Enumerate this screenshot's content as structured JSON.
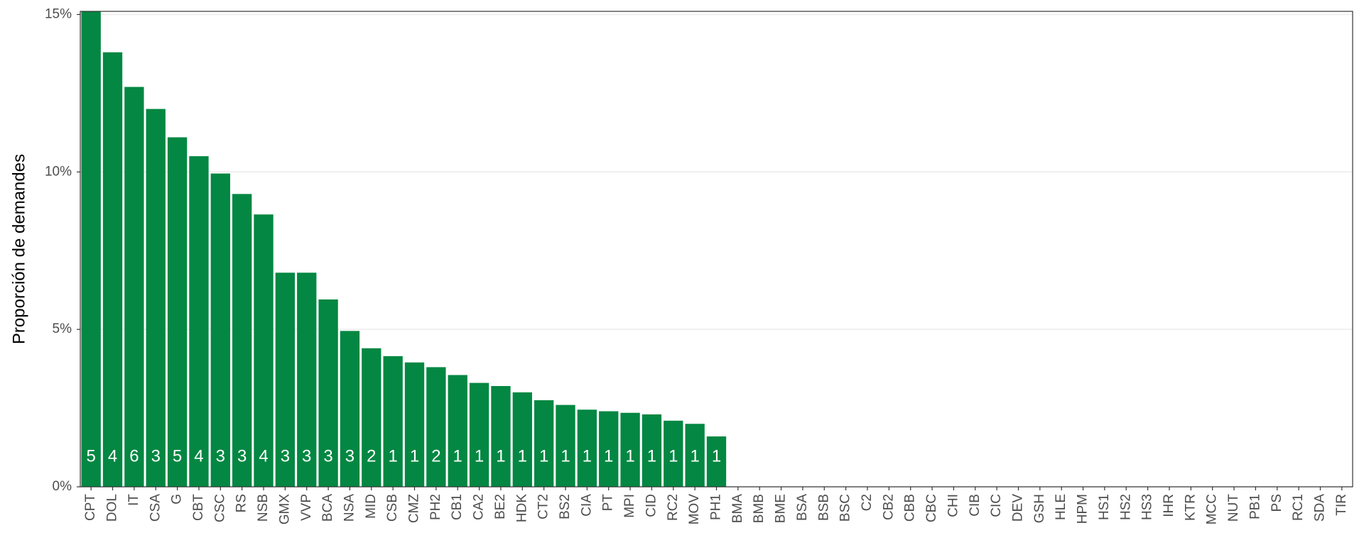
{
  "chart_data": {
    "type": "bar",
    "y_label": "Proporción de demandes",
    "categories": [
      "CPT",
      "DOL",
      "IT",
      "CSA",
      "G",
      "CBT",
      "CSC",
      "RS",
      "NSB",
      "GMX",
      "VVP",
      "BCA",
      "NSA",
      "MID",
      "CSB",
      "CMZ",
      "PH2",
      "CB1",
      "CA2",
      "BE2",
      "HDK",
      "CT2",
      "BS2",
      "CIA",
      "PT",
      "MPI",
      "CID",
      "RC2",
      "MOV",
      "PH1",
      "BMA",
      "BMB",
      "BME",
      "BSA",
      "BSB",
      "BSC",
      "C2",
      "CB2",
      "CBB",
      "CBC",
      "CHI",
      "CIB",
      "CIC",
      "DEV",
      "GSH",
      "HLE",
      "HPM",
      "HS1",
      "HS2",
      "HS3",
      "IHR",
      "KTR",
      "MCC",
      "NUT",
      "PB1",
      "PS",
      "RC1",
      "SDA",
      "TIR"
    ],
    "values": [
      15.1,
      13.8,
      12.7,
      12.0,
      11.1,
      10.5,
      9.95,
      9.3,
      8.65,
      6.8,
      6.8,
      5.95,
      4.95,
      4.4,
      4.15,
      3.95,
      3.8,
      3.55,
      3.3,
      3.2,
      3.0,
      2.75,
      2.6,
      2.45,
      2.4,
      2.35,
      2.3,
      2.1,
      2.0,
      1.6,
      0,
      0,
      0,
      0,
      0,
      0,
      0,
      0,
      0,
      0,
      0,
      0,
      0,
      0,
      0,
      0,
      0,
      0,
      0,
      0,
      0,
      0,
      0,
      0,
      0,
      0,
      0,
      0,
      0
    ],
    "counts": [
      5,
      4,
      6,
      3,
      5,
      4,
      3,
      3,
      4,
      3,
      3,
      3,
      3,
      2,
      1,
      1,
      2,
      1,
      1,
      1,
      1,
      1,
      1,
      1,
      1,
      1,
      1,
      1,
      1,
      1,
      null,
      null,
      null,
      null,
      null,
      null,
      null,
      null,
      null,
      null,
      null,
      null,
      null,
      null,
      null,
      null,
      null,
      null,
      null,
      null,
      null,
      null,
      null,
      null,
      null,
      null,
      null,
      null,
      null
    ],
    "color": "#038742",
    "ylim": [
      0,
      15.1
    ],
    "yticks": [
      {
        "value": 0,
        "label": "0%"
      },
      {
        "value": 5,
        "label": "5%"
      },
      {
        "value": 10,
        "label": "10%"
      },
      {
        "value": 15,
        "label": "15%"
      }
    ],
    "grid": true
  }
}
